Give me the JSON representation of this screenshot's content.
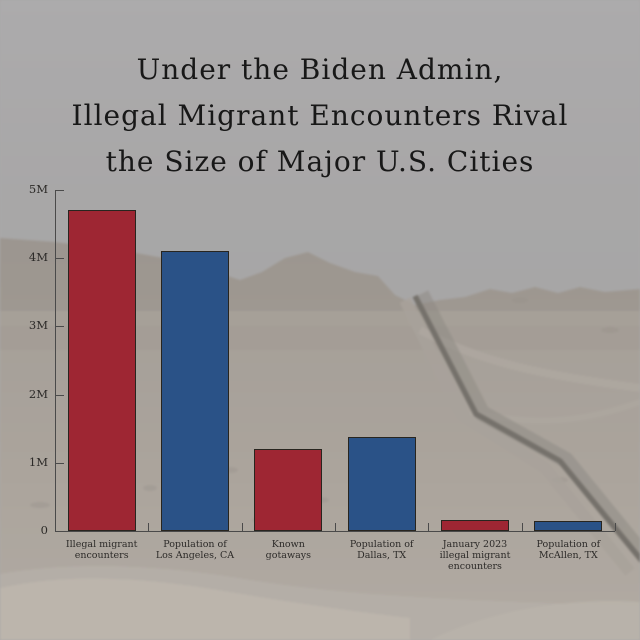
{
  "title": {
    "lines": [
      "Under the Biden Admin,",
      "Illegal Migrant Encounters Rival",
      "the Size of Major U.S. Cities"
    ]
  },
  "chart_data": {
    "type": "bar",
    "title": "Under the Biden Admin, Illegal Migrant Encounters Rival the Size of Major U.S. Cities",
    "unit": "people",
    "categories": [
      "Illegal migrant encounters",
      "Population of Los Angeles, CA",
      "Known gotaways",
      "Population of Dallas, TX",
      "January 2023 illegal migrant encounters",
      "Population of McAllen, TX"
    ],
    "category_label_lines": [
      [
        "Illegal migrant",
        "encounters"
      ],
      [
        "Population of",
        "Los Angeles, CA"
      ],
      [
        "Known",
        "gotaways"
      ],
      [
        "Population of",
        "Dallas, TX"
      ],
      [
        "January 2023",
        "illegal migrant",
        "encounters"
      ],
      [
        "Population of",
        "McAllen, TX"
      ]
    ],
    "values": [
      4700000,
      4100000,
      1200000,
      1380000,
      160000,
      140000
    ],
    "bar_colors": [
      "#9e2633",
      "#2a5287",
      "#9e2633",
      "#2a5287",
      "#9e2633",
      "#2a5287"
    ],
    "ylim": [
      0,
      5000000
    ],
    "yticks": [
      {
        "label": "0",
        "value": 0
      },
      {
        "label": "1M",
        "value": 1000000
      },
      {
        "label": "2M",
        "value": 2000000
      },
      {
        "label": "3M",
        "value": 3000000
      },
      {
        "label": "4M",
        "value": 4000000
      },
      {
        "label": "5M",
        "value": 5000000
      }
    ],
    "grid": false,
    "legend": null,
    "background": "faded aerial desert photo with border wall"
  },
  "colors": {
    "bar_red": "#9e2633",
    "bar_blue": "#2a5287",
    "axis": "#4a4a4a",
    "text_dark": "#1c1c1c"
  }
}
